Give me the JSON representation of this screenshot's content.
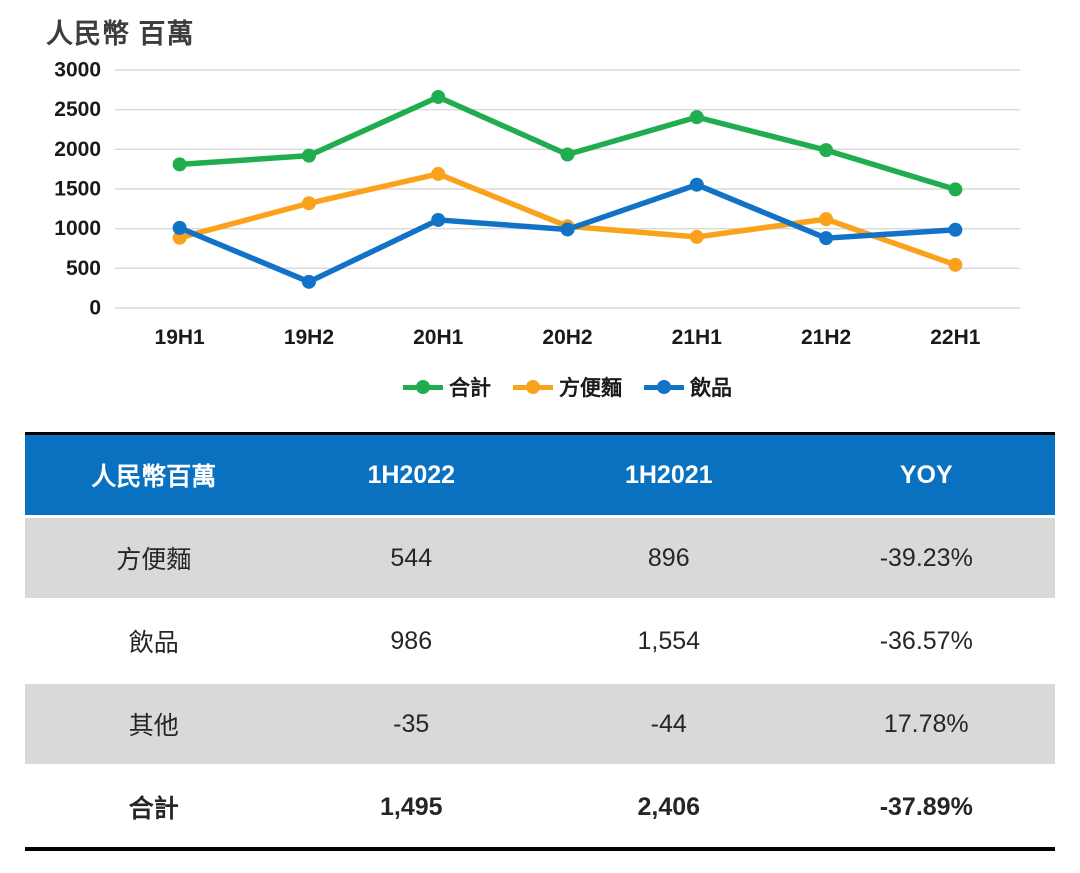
{
  "chart_data": {
    "type": "line",
    "title": "人民幣 百萬",
    "xlabel": "",
    "ylabel": "",
    "categories": [
      "19H1",
      "19H2",
      "20H1",
      "20H2",
      "21H1",
      "21H2",
      "22H1"
    ],
    "series": [
      {
        "name": "合計",
        "color": "#1FAD50",
        "values": [
          1810,
          1920,
          2660,
          1935,
          2406,
          1990,
          1495
        ]
      },
      {
        "name": "方便麵",
        "color": "#FAA21C",
        "values": [
          885,
          1320,
          1690,
          1030,
          896,
          1120,
          544
        ]
      },
      {
        "name": "飲品",
        "color": "#1273C6",
        "values": [
          1010,
          330,
          1110,
          990,
          1554,
          880,
          986
        ]
      }
    ],
    "ylim": [
      0,
      3000
    ],
    "ytick_step": 500,
    "grid": true,
    "legend_position": "bottom",
    "gridline_color": "#D9D9D9",
    "tick_color": "#1a1a1a"
  },
  "table": {
    "header": {
      "col0": "人民幣百萬",
      "col1": "1H2022",
      "col2": "1H2021",
      "col3": "YOY"
    },
    "rows": [
      {
        "cells": [
          "方便麵",
          "544",
          "896",
          "-39.23%"
        ]
      },
      {
        "cells": [
          "飲品",
          "986",
          "1,554",
          "-36.57%"
        ]
      },
      {
        "cells": [
          "其他",
          "-35",
          "-44",
          "17.78%"
        ]
      },
      {
        "cells": [
          "合計",
          "1,495",
          "2,406",
          "-37.89%"
        ]
      }
    ],
    "colors": {
      "header_bg": "#0A71C1",
      "header_text": "#FFFFFF",
      "shaded_row_bg": "#D9D9D9",
      "text": "#262626",
      "border": "#000000"
    }
  }
}
